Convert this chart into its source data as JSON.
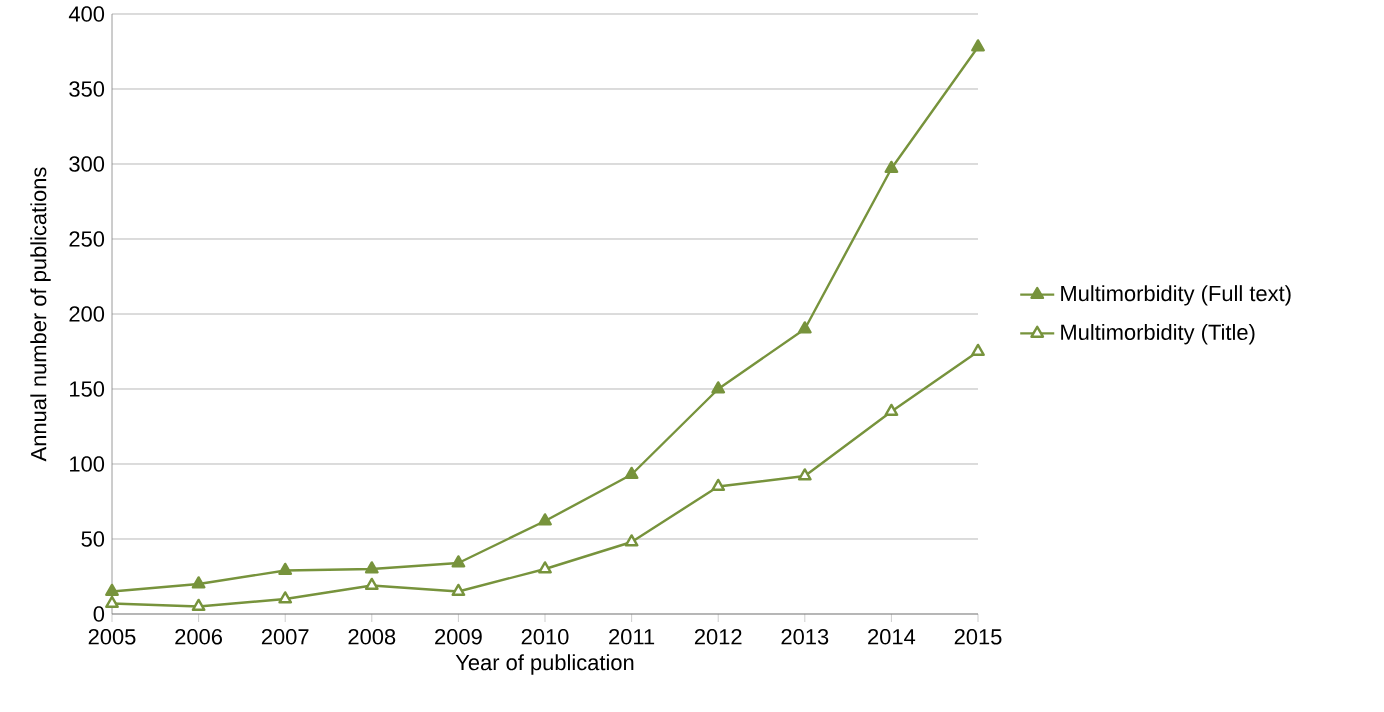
{
  "chart_data": {
    "type": "line",
    "xlabel": "Year of publication",
    "ylabel": "Annual number of publications",
    "x": [
      2005,
      2006,
      2007,
      2008,
      2009,
      2010,
      2011,
      2012,
      2013,
      2014,
      2015
    ],
    "series": [
      {
        "name": "Multimorbidity (Full text)",
        "color": "#77933c",
        "values": [
          15,
          20,
          29,
          30,
          34,
          62,
          93,
          150,
          190,
          297,
          378
        ]
      },
      {
        "name": "Multimorbidity (Title)",
        "color": "#77933c",
        "values": [
          7,
          5,
          10,
          19,
          15,
          30,
          48,
          85,
          92,
          135,
          175
        ]
      }
    ],
    "xlim": [
      2005,
      2015
    ],
    "xticks": [
      2005,
      2006,
      2007,
      2008,
      2009,
      2010,
      2011,
      2012,
      2013,
      2014,
      2015
    ],
    "ylim": [
      0,
      400
    ],
    "yticks": [
      0,
      50,
      100,
      150,
      200,
      250,
      300,
      350,
      400
    ],
    "grid": "y",
    "legend": "right",
    "marker": "triangle",
    "line_style": "solid"
  }
}
